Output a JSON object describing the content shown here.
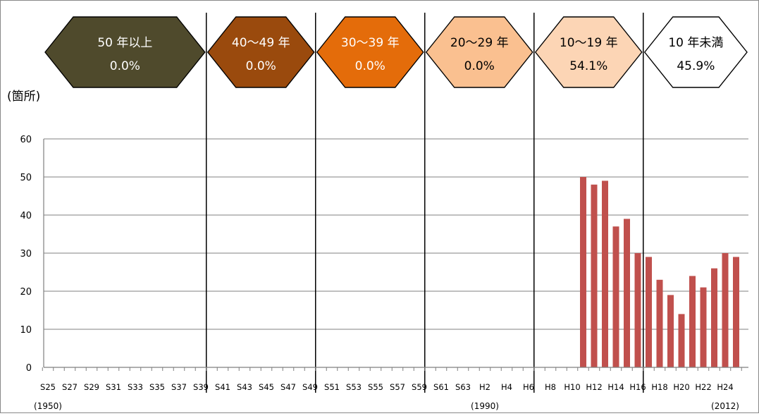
{
  "chart_data": {
    "type": "bar",
    "ylabel": "(箇所)",
    "ylim": [
      0,
      60
    ],
    "yticks": [
      "0",
      "10",
      "20",
      "30",
      "40",
      "50",
      "60"
    ],
    "grid": true,
    "bar_color": "#c0504d",
    "categories": [
      "S25",
      "S26",
      "S27",
      "S28",
      "S29",
      "S30",
      "S31",
      "S32",
      "S33",
      "S34",
      "S35",
      "S36",
      "S37",
      "S38",
      "S39",
      "S40",
      "S41",
      "S42",
      "S43",
      "S44",
      "S45",
      "S46",
      "S47",
      "S48",
      "S49",
      "S50",
      "S51",
      "S52",
      "S53",
      "S54",
      "S55",
      "S56",
      "S57",
      "S58",
      "S59",
      "S60",
      "S61",
      "S62",
      "S63",
      "H1",
      "H2",
      "H3",
      "H4",
      "H5",
      "H6",
      "H7",
      "H8",
      "H9",
      "H10",
      "H11",
      "H12",
      "H13",
      "H14",
      "H15",
      "H16",
      "H17",
      "H18",
      "H19",
      "H20",
      "H21",
      "H22",
      "H23",
      "H24",
      "H25"
    ],
    "tick_labels": [
      "S25",
      "S27",
      "S29",
      "S31",
      "S33",
      "S35",
      "S37",
      "S39",
      "S41",
      "S43",
      "S45",
      "S47",
      "S49",
      "S51",
      "S53",
      "S55",
      "S57",
      "S59",
      "S61",
      "S63",
      "H2",
      "H4",
      "H6",
      "H8",
      "H10",
      "H12",
      "H14",
      "H16",
      "H18",
      "H20",
      "H22",
      "H24"
    ],
    "values": [
      0,
      0,
      0,
      0,
      0,
      0,
      0,
      0,
      0,
      0,
      0,
      0,
      0,
      0,
      0,
      0,
      0,
      0,
      0,
      0,
      0,
      0,
      0,
      0,
      0,
      0,
      0,
      0,
      0,
      0,
      0,
      0,
      0,
      0,
      0,
      0,
      0,
      0,
      0,
      0,
      0,
      0,
      0,
      0,
      0,
      0,
      0,
      0,
      0,
      50,
      48,
      49,
      37,
      39,
      30,
      29,
      23,
      19,
      14,
      24,
      21,
      26,
      30,
      29
    ],
    "year_annotations": [
      "(1950)",
      "(1990)",
      "(2012)"
    ],
    "bands": [
      {
        "label": "50 年以上",
        "percent": "0.0%",
        "color": "#4f4a2c",
        "text_color": "#ffffff"
      },
      {
        "label": "40～49 年",
        "percent": "0.0%",
        "color": "#9a4a0d",
        "text_color": "#ffffff"
      },
      {
        "label": "30～39 年",
        "percent": "0.0%",
        "color": "#e46c0a",
        "text_color": "#ffffff"
      },
      {
        "label": "20～29 年",
        "percent": "0.0%",
        "color": "#fac090",
        "text_color": "#000000"
      },
      {
        "label": "10～19 年",
        "percent": "54.1%",
        "color": "#fcd5b5",
        "text_color": "#000000"
      },
      {
        "label": "10 年未満",
        "percent": "45.9%",
        "color": "#ffffff",
        "text_color": "#000000"
      }
    ]
  }
}
